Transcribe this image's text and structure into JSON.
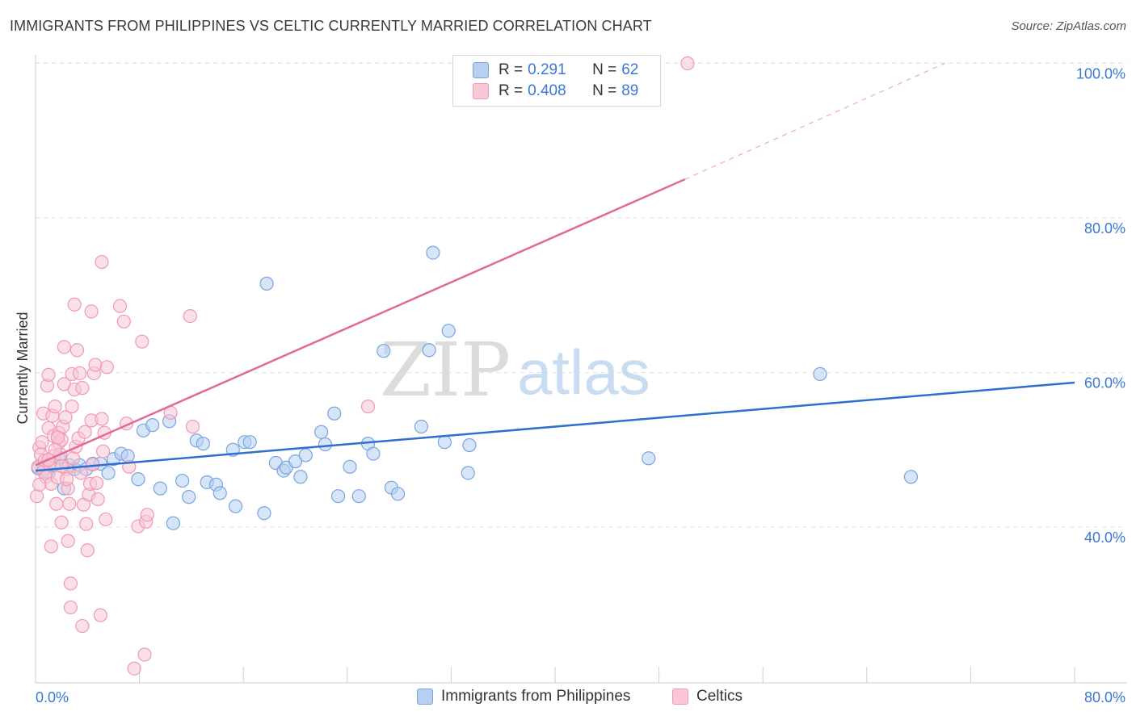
{
  "title": "IMMIGRANTS FROM PHILIPPINES VS CELTIC CURRENTLY MARRIED CORRELATION CHART",
  "source": "Source: ZipAtlas.com",
  "watermark": {
    "zip": "ZIP",
    "atlas": "atlas"
  },
  "legend": {
    "r_label": "R =",
    "n_label": "N =",
    "series": [
      {
        "r": "0.291",
        "n": "62"
      },
      {
        "r": "0.408",
        "n": "89"
      }
    ]
  },
  "bottom_legend": [
    "Immigrants from Philippines",
    "Celtics"
  ],
  "colors": {
    "blue_fill": "#b7d0f2",
    "blue_stroke": "#7aa4e0",
    "blue_line": "#2f6fd0",
    "pink_fill": "#f9c7d6",
    "pink_stroke": "#ee9ab4",
    "pink_line": "#e26a96",
    "tick_text": "#3a78d4",
    "grid": "#e3e3e3"
  },
  "chart_data": {
    "type": "scatter",
    "title": "IMMIGRANTS FROM PHILIPPINES VS CELTIC CURRENTLY MARRIED CORRELATION CHART",
    "xlabel": "",
    "ylabel": "Currently Married",
    "xlim": [
      0,
      80
    ],
    "ylim": [
      18,
      102
    ],
    "x_tick_labels": [
      "0.0%",
      "80.0%"
    ],
    "y_ticks": [
      40,
      60,
      80,
      100
    ],
    "y_tick_labels": [
      "40.0%",
      "60.0%",
      "80.0%",
      "100.0%"
    ],
    "grid": true,
    "legend_position": "top-center",
    "series": [
      {
        "name": "Immigrants from Philippines",
        "color": "#7aa4e0",
        "points": [
          [
            0.6,
            47.5
          ],
          [
            1.0,
            47.0
          ],
          [
            1.4,
            48.0
          ],
          [
            1.8,
            49.0
          ],
          [
            2.2,
            45.0
          ],
          [
            2.6,
            48.0
          ],
          [
            3.0,
            47.5
          ],
          [
            3.4,
            48.0
          ],
          [
            3.9,
            47.5
          ],
          [
            4.4,
            48.2
          ],
          [
            5.0,
            48.2
          ],
          [
            5.6,
            47.0
          ],
          [
            6.0,
            48.8
          ],
          [
            6.6,
            49.5
          ],
          [
            7.1,
            49.2
          ],
          [
            7.9,
            46.2
          ],
          [
            8.3,
            52.5
          ],
          [
            9.0,
            53.2
          ],
          [
            9.6,
            45.0
          ],
          [
            10.3,
            53.7
          ],
          [
            10.6,
            40.5
          ],
          [
            11.3,
            46.0
          ],
          [
            11.8,
            43.9
          ],
          [
            12.4,
            51.2
          ],
          [
            12.9,
            50.8
          ],
          [
            13.2,
            45.8
          ],
          [
            13.9,
            45.5
          ],
          [
            14.2,
            44.4
          ],
          [
            15.2,
            50.0
          ],
          [
            15.4,
            42.7
          ],
          [
            16.1,
            51.0
          ],
          [
            16.5,
            51.0
          ],
          [
            17.6,
            41.8
          ],
          [
            17.8,
            71.5
          ],
          [
            18.5,
            48.3
          ],
          [
            19.1,
            47.3
          ],
          [
            19.3,
            47.7
          ],
          [
            20.0,
            48.5
          ],
          [
            20.4,
            46.5
          ],
          [
            20.8,
            49.3
          ],
          [
            22.0,
            52.3
          ],
          [
            22.3,
            50.7
          ],
          [
            23.0,
            54.7
          ],
          [
            23.3,
            44.0
          ],
          [
            24.2,
            47.8
          ],
          [
            24.9,
            44.0
          ],
          [
            25.6,
            50.8
          ],
          [
            26.0,
            49.5
          ],
          [
            26.8,
            62.8
          ],
          [
            27.4,
            45.1
          ],
          [
            27.9,
            44.3
          ],
          [
            29.7,
            53.0
          ],
          [
            30.3,
            62.9
          ],
          [
            30.6,
            75.5
          ],
          [
            31.5,
            51.0
          ],
          [
            31.8,
            65.4
          ],
          [
            33.3,
            47.0
          ],
          [
            33.4,
            50.6
          ],
          [
            47.2,
            48.9
          ],
          [
            60.4,
            59.8
          ],
          [
            67.4,
            46.5
          ],
          [
            0.2,
            47.6
          ]
        ]
      },
      {
        "name": "Celtics",
        "color": "#ee9ab4",
        "points": [
          [
            0.1,
            44.0
          ],
          [
            0.2,
            47.8
          ],
          [
            0.3,
            50.3
          ],
          [
            0.4,
            49.4
          ],
          [
            0.5,
            51.0
          ],
          [
            0.6,
            47.2
          ],
          [
            0.6,
            54.7
          ],
          [
            0.7,
            48.6
          ],
          [
            0.8,
            46.5
          ],
          [
            0.9,
            58.3
          ],
          [
            1.0,
            59.7
          ],
          [
            1.0,
            52.8
          ],
          [
            1.1,
            48.1
          ],
          [
            1.2,
            45.6
          ],
          [
            1.2,
            37.5
          ],
          [
            1.3,
            54.4
          ],
          [
            1.4,
            51.8
          ],
          [
            1.4,
            49.2
          ],
          [
            1.5,
            55.6
          ],
          [
            1.6,
            43.0
          ],
          [
            1.7,
            46.4
          ],
          [
            1.8,
            50.9
          ],
          [
            1.8,
            52.2
          ],
          [
            1.9,
            49.4
          ],
          [
            2.0,
            40.6
          ],
          [
            2.0,
            51.3
          ],
          [
            2.1,
            53.0
          ],
          [
            2.2,
            58.5
          ],
          [
            2.2,
            63.3
          ],
          [
            2.3,
            54.2
          ],
          [
            2.4,
            47.5
          ],
          [
            2.5,
            38.2
          ],
          [
            2.5,
            45.0
          ],
          [
            2.6,
            43.0
          ],
          [
            2.7,
            32.7
          ],
          [
            2.7,
            29.6
          ],
          [
            2.8,
            59.8
          ],
          [
            2.8,
            55.6
          ],
          [
            2.9,
            48.9
          ],
          [
            3.0,
            68.8
          ],
          [
            3.0,
            57.8
          ],
          [
            3.1,
            50.4
          ],
          [
            3.2,
            62.9
          ],
          [
            3.3,
            51.5
          ],
          [
            3.4,
            59.9
          ],
          [
            3.5,
            47.0
          ],
          [
            3.6,
            58.0
          ],
          [
            3.6,
            27.2
          ],
          [
            3.7,
            42.9
          ],
          [
            3.8,
            52.3
          ],
          [
            3.9,
            40.4
          ],
          [
            4.0,
            37.0
          ],
          [
            4.1,
            44.2
          ],
          [
            4.2,
            45.6
          ],
          [
            4.3,
            67.9
          ],
          [
            4.3,
            53.8
          ],
          [
            4.4,
            48.1
          ],
          [
            4.5,
            59.9
          ],
          [
            4.6,
            61.0
          ],
          [
            4.7,
            45.7
          ],
          [
            4.8,
            43.6
          ],
          [
            5.0,
            28.6
          ],
          [
            5.1,
            74.3
          ],
          [
            5.1,
            54.0
          ],
          [
            5.2,
            49.8
          ],
          [
            5.3,
            52.2
          ],
          [
            5.4,
            41.0
          ],
          [
            5.5,
            60.7
          ],
          [
            6.5,
            68.6
          ],
          [
            6.8,
            66.6
          ],
          [
            7.0,
            53.4
          ],
          [
            7.2,
            47.8
          ],
          [
            7.6,
            21.7
          ],
          [
            7.9,
            40.1
          ],
          [
            8.2,
            64.0
          ],
          [
            8.4,
            23.5
          ],
          [
            8.5,
            40.7
          ],
          [
            8.6,
            41.6
          ],
          [
            10.4,
            54.8
          ],
          [
            11.9,
            67.3
          ],
          [
            12.1,
            53.0
          ],
          [
            25.6,
            55.6
          ],
          [
            50.2,
            100.0
          ],
          [
            1.5,
            50.0
          ],
          [
            2.0,
            47.9
          ],
          [
            0.3,
            45.5
          ],
          [
            1.0,
            48.7
          ],
          [
            1.7,
            51.6
          ],
          [
            2.4,
            46.2
          ]
        ]
      }
    ],
    "trend_lines": [
      {
        "series": "Immigrants from Philippines",
        "x": [
          0,
          80
        ],
        "y": [
          47.3,
          58.7
        ]
      },
      {
        "series": "Celtics",
        "x": [
          0,
          50
        ],
        "y": [
          48.0,
          85.0
        ],
        "dashed_extension_to": [
          70,
          100.0
        ]
      }
    ]
  }
}
